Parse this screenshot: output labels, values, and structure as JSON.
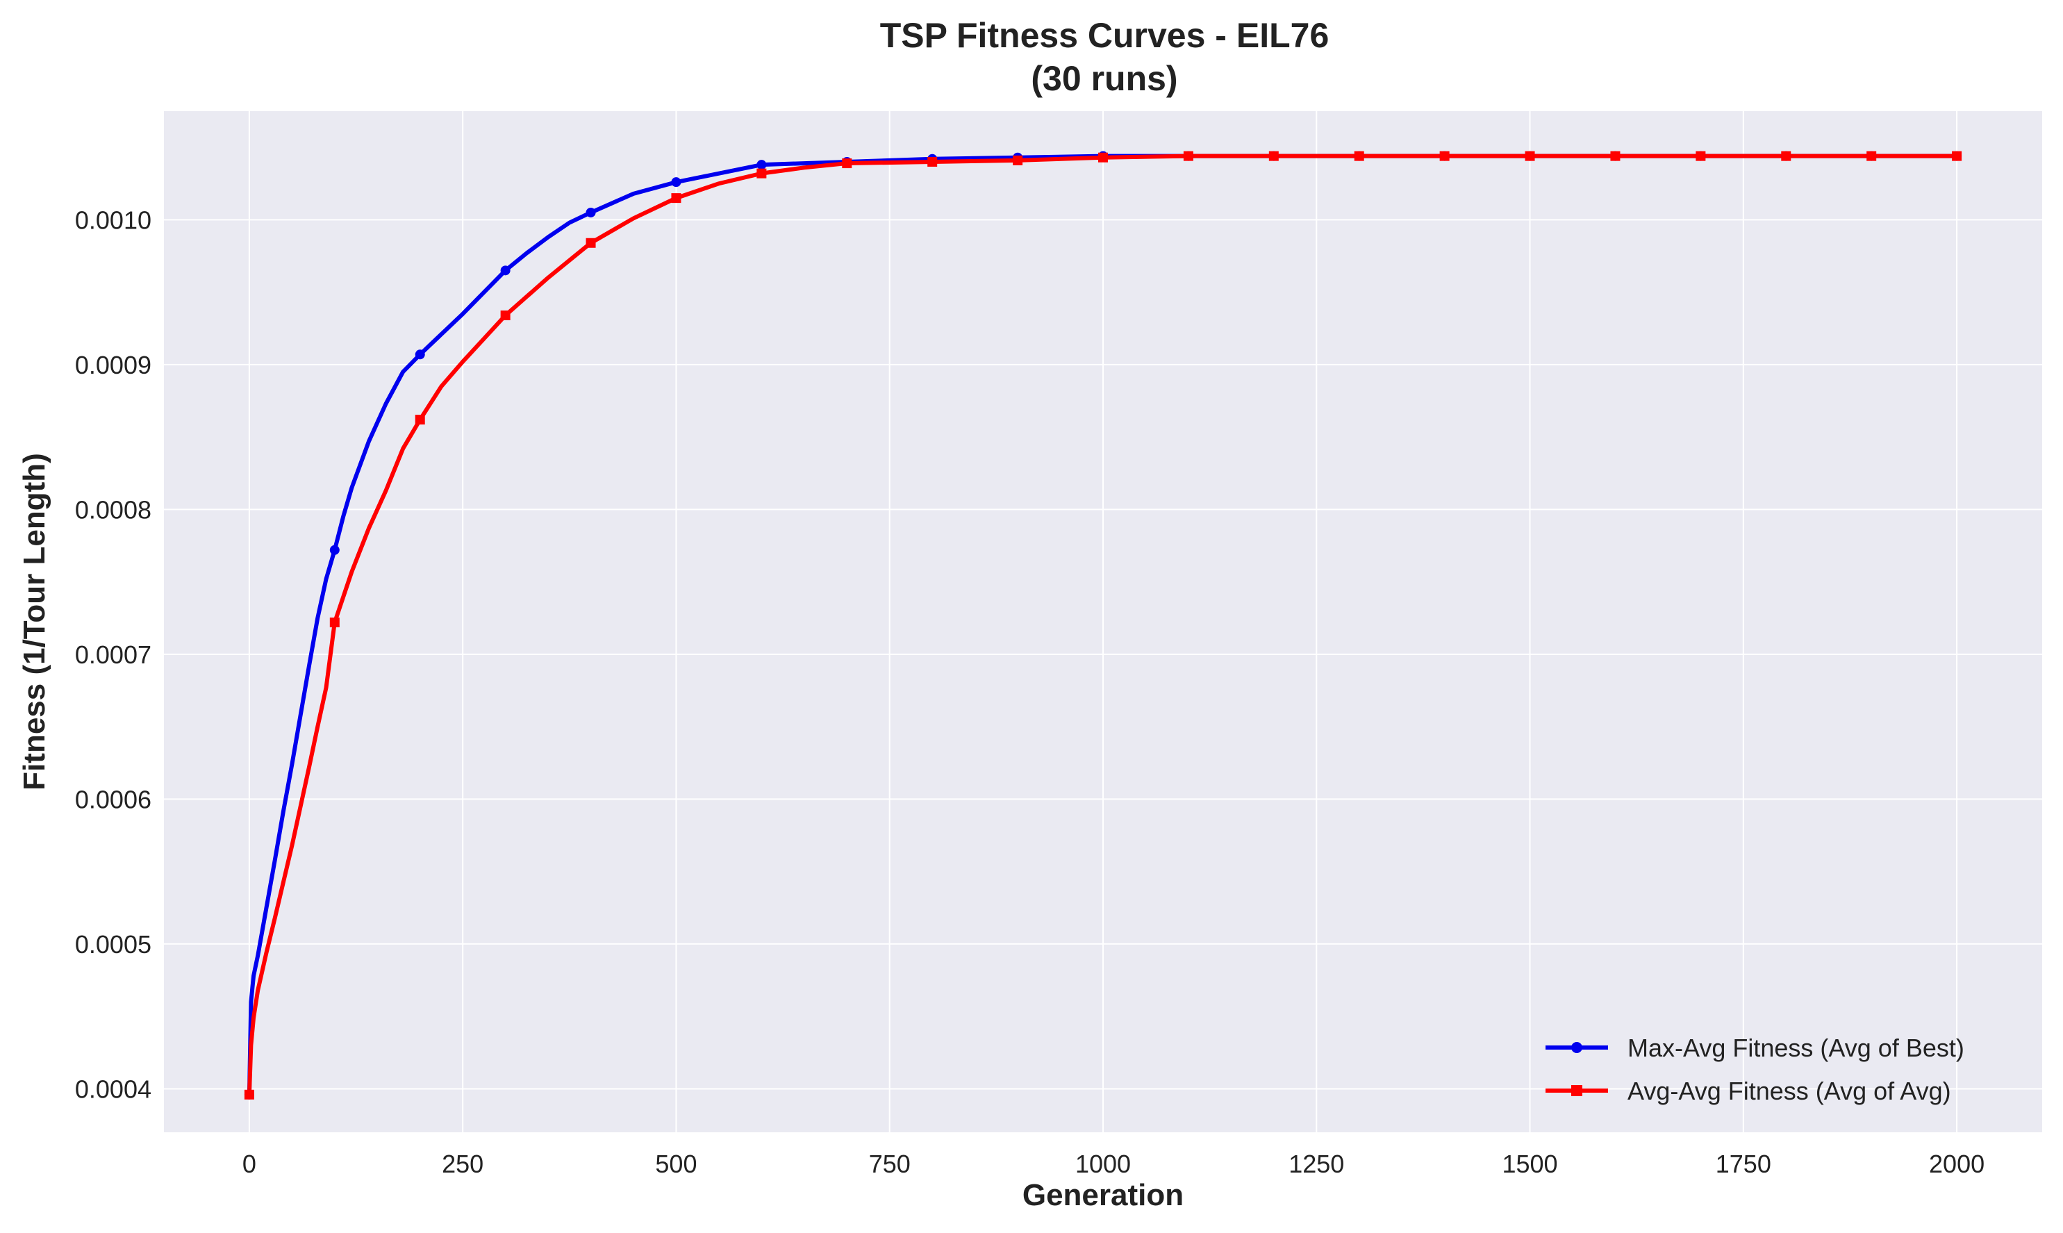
{
  "chart_data": {
    "type": "line",
    "title_line1": "TSP Fitness Curves - EIL76",
    "title_line2": "(30 runs)",
    "xlabel": "Generation",
    "ylabel": "Fitness (1/Tour Length)",
    "xlim": [
      -100,
      2100
    ],
    "ylim": [
      0.00037,
      0.001075
    ],
    "x_ticks": [
      0,
      250,
      500,
      750,
      1000,
      1250,
      1500,
      1750,
      2000
    ],
    "x_tick_labels": [
      "0",
      "250",
      "500",
      "750",
      "1000",
      "1250",
      "1500",
      "1750",
      "2000"
    ],
    "y_ticks": [
      0.0004,
      0.0005,
      0.0006,
      0.0007,
      0.0008,
      0.0009,
      0.001
    ],
    "y_tick_labels": [
      "0.0004",
      "0.0005",
      "0.0006",
      "0.0007",
      "0.0008",
      "0.0009",
      "0.0010"
    ],
    "grid": true,
    "legend_position": "lower-right",
    "series": [
      {
        "name": "Max-Avg Fitness (Avg of Best)",
        "color": "#0000ee",
        "marker": "circle",
        "x": [
          0,
          2,
          5,
          10,
          20,
          30,
          40,
          50,
          60,
          70,
          80,
          90,
          100,
          110,
          120,
          140,
          160,
          180,
          200,
          225,
          250,
          275,
          300,
          325,
          350,
          375,
          400,
          450,
          500,
          550,
          600,
          700,
          800,
          900,
          1000,
          1100,
          1200,
          1300,
          1400,
          1500,
          1600,
          1700,
          1800,
          1900,
          2000
        ],
        "y": [
          0.000396,
          0.00046,
          0.000478,
          0.000492,
          0.000525,
          0.000558,
          0.000592,
          0.000624,
          0.000658,
          0.000692,
          0.000725,
          0.000752,
          0.000772,
          0.000795,
          0.000815,
          0.000847,
          0.000873,
          0.000895,
          0.000907,
          0.000921,
          0.000935,
          0.00095,
          0.000965,
          0.000977,
          0.000988,
          0.000998,
          0.001005,
          0.001018,
          0.001026,
          0.001032,
          0.001038,
          0.00104,
          0.001042,
          0.001043,
          0.001044,
          0.001044,
          0.001044,
          0.001044,
          0.001044,
          0.001044,
          0.001044,
          0.001044,
          0.001044,
          0.001044,
          0.001044
        ],
        "marker_x": [
          0,
          100,
          200,
          300,
          400,
          500,
          600,
          700,
          800,
          900,
          1000,
          1100,
          1200,
          1300,
          1400,
          1500,
          1600,
          1700,
          1800,
          1900,
          2000
        ]
      },
      {
        "name": "Avg-Avg Fitness (Avg of Avg)",
        "color": "#ff0000",
        "marker": "square",
        "x": [
          0,
          2,
          5,
          10,
          20,
          30,
          40,
          50,
          60,
          70,
          80,
          90,
          100,
          120,
          140,
          160,
          180,
          200,
          225,
          250,
          275,
          300,
          350,
          400,
          450,
          500,
          550,
          600,
          650,
          700,
          800,
          900,
          1000,
          1100,
          1200,
          1300,
          1400,
          1500,
          1600,
          1700,
          1800,
          1900,
          2000
        ],
        "y": [
          0.000396,
          0.00043,
          0.000449,
          0.000468,
          0.000494,
          0.000518,
          0.000543,
          0.000568,
          0.000595,
          0.000622,
          0.00065,
          0.000677,
          0.000722,
          0.000757,
          0.000787,
          0.000813,
          0.000842,
          0.000862,
          0.000885,
          0.000902,
          0.000918,
          0.000934,
          0.00096,
          0.000984,
          0.001001,
          0.001015,
          0.001025,
          0.001032,
          0.001036,
          0.001039,
          0.00104,
          0.001041,
          0.001043,
          0.001044,
          0.001044,
          0.001044,
          0.001044,
          0.001044,
          0.001044,
          0.001044,
          0.001044,
          0.001044,
          0.001044
        ],
        "marker_x": [
          0,
          100,
          200,
          300,
          400,
          500,
          600,
          700,
          800,
          900,
          1000,
          1100,
          1200,
          1300,
          1400,
          1500,
          1600,
          1700,
          1800,
          1900,
          2000
        ]
      }
    ]
  }
}
